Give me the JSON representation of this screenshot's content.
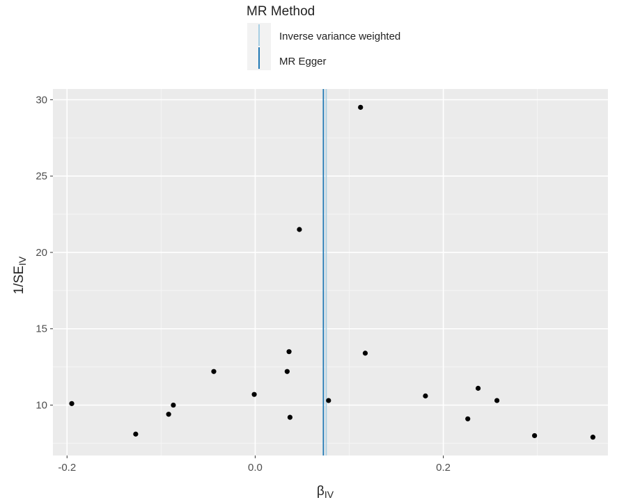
{
  "chart_data": {
    "type": "scatter",
    "title": "",
    "xlabel": "β",
    "xlabel_sub": "IV",
    "ylabel_prefix": "1/SE",
    "ylabel_sub": "IV",
    "xlim": [
      -0.215,
      0.375
    ],
    "ylim": [
      6.7,
      30.7
    ],
    "x_ticks": [
      -0.2,
      0.0,
      0.2
    ],
    "x_tick_labels": [
      "-0.2",
      "0.0",
      "0.2"
    ],
    "y_ticks": [
      10,
      15,
      20,
      25,
      30
    ],
    "y_tick_labels": [
      "10",
      "15",
      "20",
      "25",
      "30"
    ],
    "grid": true,
    "legend": {
      "title": "MR Method",
      "placement": "top",
      "entries": [
        {
          "label": "Inverse variance weighted",
          "color": "#a6cee3"
        },
        {
          "label": "MR Egger",
          "color": "#1f78b4"
        }
      ]
    },
    "points": [
      {
        "x": -0.195,
        "y": 10.1
      },
      {
        "x": -0.127,
        "y": 8.1
      },
      {
        "x": -0.092,
        "y": 9.4
      },
      {
        "x": -0.087,
        "y": 10.0
      },
      {
        "x": -0.044,
        "y": 12.2
      },
      {
        "x": -0.001,
        "y": 10.7
      },
      {
        "x": 0.034,
        "y": 12.2
      },
      {
        "x": 0.036,
        "y": 13.5
      },
      {
        "x": 0.037,
        "y": 9.2
      },
      {
        "x": 0.047,
        "y": 21.5
      },
      {
        "x": 0.078,
        "y": 10.3
      },
      {
        "x": 0.112,
        "y": 29.5
      },
      {
        "x": 0.117,
        "y": 13.4
      },
      {
        "x": 0.181,
        "y": 10.6
      },
      {
        "x": 0.226,
        "y": 9.1
      },
      {
        "x": 0.237,
        "y": 11.1
      },
      {
        "x": 0.257,
        "y": 10.3
      },
      {
        "x": 0.297,
        "y": 8.0
      },
      {
        "x": 0.359,
        "y": 7.9
      }
    ],
    "vlines": [
      {
        "method": "Inverse variance weighted",
        "x": 0.0755,
        "color": "#a6cee3"
      },
      {
        "method": "MR Egger",
        "x": 0.0725,
        "color": "#1f78b4"
      }
    ],
    "colors": {
      "panel": "#ebebeb",
      "grid_major": "#ffffff",
      "grid_minor": "#f5f5f5",
      "point": "#000000",
      "tick": "#333333"
    }
  }
}
